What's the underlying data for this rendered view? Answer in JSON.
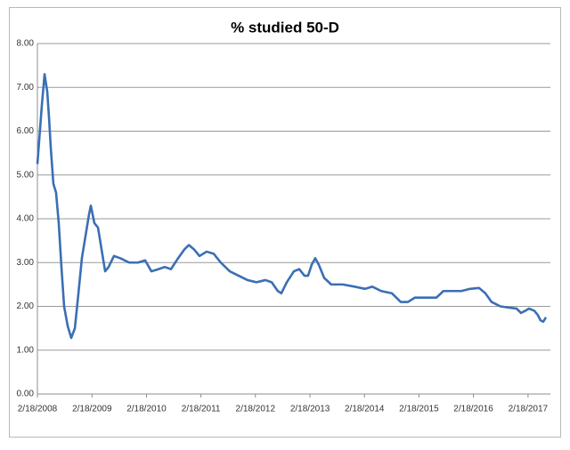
{
  "chart_data": {
    "type": "line",
    "title": "% studied 50-D",
    "x": [
      "2008-02-18",
      "2008-03-19",
      "2008-04-06",
      "2008-04-24",
      "2008-05-06",
      "2008-05-18",
      "2008-06-04",
      "2008-06-22",
      "2008-07-10",
      "2008-07-28",
      "2008-08-15",
      "2008-09-08",
      "2008-10-02",
      "2008-10-26",
      "2008-11-19",
      "2008-12-12",
      "2009-01-05",
      "2009-01-29",
      "2009-02-10",
      "2009-03-06",
      "2009-03-30",
      "2009-04-23",
      "2009-05-17",
      "2009-06-09",
      "2009-07-15",
      "2009-08-26",
      "2009-10-25",
      "2009-12-23",
      "2010-02-09",
      "2010-03-23",
      "2010-05-10",
      "2010-06-20",
      "2010-08-01",
      "2010-09-18",
      "2010-10-30",
      "2010-11-29",
      "2011-01-03",
      "2011-02-08",
      "2011-03-28",
      "2011-05-15",
      "2011-07-01",
      "2011-08-30",
      "2011-10-29",
      "2011-12-27",
      "2012-02-25",
      "2012-04-25",
      "2012-06-06",
      "2012-07-17",
      "2012-08-10",
      "2012-09-15",
      "2012-11-02",
      "2012-12-08",
      "2013-01-12",
      "2013-02-05",
      "2013-03-01",
      "2013-03-25",
      "2013-04-18",
      "2013-05-24",
      "2013-07-10",
      "2013-09-26",
      "2013-12-13",
      "2014-02-22",
      "2014-04-11",
      "2014-06-10",
      "2014-08-20",
      "2014-10-19",
      "2014-12-06",
      "2015-01-22",
      "2015-04-04",
      "2015-06-15",
      "2015-08-01",
      "2015-09-30",
      "2015-11-29",
      "2016-01-27",
      "2016-03-27",
      "2016-05-08",
      "2016-06-19",
      "2016-08-17",
      "2016-10-16",
      "2016-12-03",
      "2017-01-02",
      "2017-01-31",
      "2017-02-24",
      "2017-04-01",
      "2017-04-25",
      "2017-05-13",
      "2017-05-31",
      "2017-06-18"
    ],
    "series": [
      {
        "color": "#3a6fb4",
        "values": [
          5.25,
          6.6,
          7.3,
          6.9,
          6.3,
          5.6,
          4.8,
          4.6,
          3.9,
          2.9,
          2.0,
          1.55,
          1.28,
          1.5,
          2.3,
          3.1,
          3.6,
          4.1,
          4.3,
          3.9,
          3.8,
          3.3,
          2.8,
          2.9,
          3.15,
          3.1,
          3.0,
          3.0,
          3.05,
          2.8,
          2.85,
          2.9,
          2.85,
          3.1,
          3.3,
          3.4,
          3.3,
          3.15,
          3.25,
          3.2,
          3.0,
          2.8,
          2.7,
          2.6,
          2.55,
          2.6,
          2.55,
          2.35,
          2.3,
          2.55,
          2.8,
          2.85,
          2.7,
          2.7,
          2.95,
          3.1,
          2.95,
          2.65,
          2.5,
          2.5,
          2.45,
          2.4,
          2.45,
          2.35,
          2.3,
          2.1,
          2.1,
          2.2,
          2.2,
          2.2,
          2.35,
          2.35,
          2.35,
          2.4,
          2.42,
          2.3,
          2.1,
          2.0,
          1.97,
          1.95,
          1.85,
          1.9,
          1.95,
          1.9,
          1.8,
          1.68,
          1.65,
          1.75
        ]
      }
    ],
    "xlim": [
      "2008-02-18",
      "2017-07-18"
    ],
    "xticks": [
      {
        "value": "2008-02-18",
        "label": "2/18/2008"
      },
      {
        "value": "2009-02-18",
        "label": "2/18/2009"
      },
      {
        "value": "2010-02-18",
        "label": "2/18/2010"
      },
      {
        "value": "2011-02-18",
        "label": "2/18/2011"
      },
      {
        "value": "2012-02-18",
        "label": "2/18/2012"
      },
      {
        "value": "2013-02-18",
        "label": "2/18/2013"
      },
      {
        "value": "2014-02-18",
        "label": "2/18/2014"
      },
      {
        "value": "2015-02-18",
        "label": "2/18/2015"
      },
      {
        "value": "2016-02-18",
        "label": "2/18/2016"
      },
      {
        "value": "2017-02-18",
        "label": "2/18/2017"
      }
    ],
    "ylim": [
      0,
      8
    ],
    "yticks": [
      {
        "value": 0,
        "label": "0.00"
      },
      {
        "value": 1,
        "label": "1.00"
      },
      {
        "value": 2,
        "label": "2.00"
      },
      {
        "value": 3,
        "label": "3.00"
      },
      {
        "value": 4,
        "label": "4.00"
      },
      {
        "value": 5,
        "label": "5.00"
      },
      {
        "value": 6,
        "label": "6.00"
      },
      {
        "value": 7,
        "label": "7.00"
      },
      {
        "value": 8,
        "label": "8.00"
      }
    ],
    "grid": true
  }
}
